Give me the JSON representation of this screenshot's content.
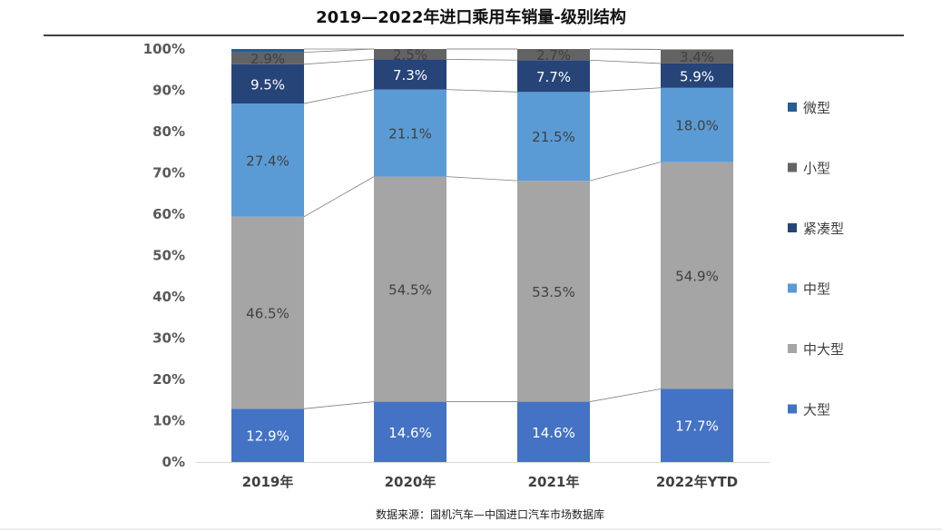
{
  "chart_data": {
    "type": "bar",
    "stacked": true,
    "percent": true,
    "title": "2019—2022年进口乘用车销量-级别结构",
    "categories": [
      "2019年",
      "2020年",
      "2021年",
      "2022年YTD"
    ],
    "series": [
      {
        "name": "大型",
        "values": [
          12.9,
          14.6,
          14.6,
          17.7
        ],
        "color": "#4472C4",
        "label_color": "#FFFFFF"
      },
      {
        "name": "中大型",
        "values": [
          46.5,
          54.5,
          53.5,
          54.9
        ],
        "color": "#A5A5A5",
        "label_color": "#404040"
      },
      {
        "name": "中型",
        "values": [
          27.4,
          21.1,
          21.5,
          18.0
        ],
        "color": "#5B9BD5",
        "label_color": "#404040"
      },
      {
        "name": "紧凑型",
        "values": [
          9.5,
          7.3,
          7.7,
          5.9
        ],
        "color": "#264478",
        "label_color": "#FFFFFF"
      },
      {
        "name": "小型",
        "values": [
          2.9,
          2.5,
          2.7,
          3.4
        ],
        "color": "#636363",
        "label_color": "#404040"
      },
      {
        "name": "微型",
        "values": [
          0.8,
          0.0,
          0.0,
          0.0
        ],
        "color": "#255E91",
        "label_color": "#404040",
        "hide_labels": true
      }
    ],
    "value_suffix": "%",
    "ylim": [
      0,
      100
    ],
    "yticks": [
      "0%",
      "10%",
      "20%",
      "30%",
      "40%",
      "50%",
      "60%",
      "70%",
      "80%",
      "90%",
      "100%"
    ],
    "legend_order": [
      "微型",
      "小型",
      "紧凑型",
      "中型",
      "中大型",
      "大型"
    ],
    "legend_position": "right",
    "series_lines": true,
    "grid": false
  },
  "source": "数据来源：国机汽车—中国进口汽车市场数据库"
}
